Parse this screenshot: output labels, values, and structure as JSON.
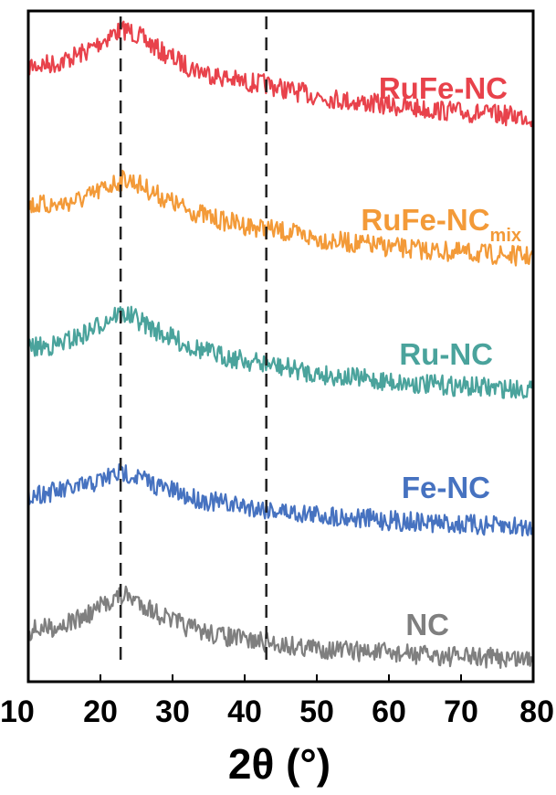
{
  "chart_data": {
    "type": "line",
    "xlabel": "2θ (°)",
    "xlim": [
      10,
      80
    ],
    "xticks": [
      10,
      20,
      30,
      40,
      50,
      60,
      70,
      80
    ],
    "y_axis_shown": false,
    "stacked_offset": true,
    "grid": false,
    "reference_lines": [
      {
        "x": 22.8,
        "style": "dashed",
        "color": "#222222"
      },
      {
        "x": 43.0,
        "style": "dashed",
        "color": "#222222"
      }
    ],
    "series": [
      {
        "name": "RuFe-NC",
        "color": "#e8424b",
        "x": [
          10,
          14,
          18,
          20,
          22,
          23.5,
          25,
          28,
          32,
          36,
          40,
          43,
          46,
          50,
          55,
          60,
          65,
          70,
          75,
          80
        ],
        "y": [
          0.55,
          0.58,
          0.7,
          0.8,
          0.9,
          0.93,
          0.88,
          0.72,
          0.55,
          0.45,
          0.38,
          0.36,
          0.3,
          0.24,
          0.18,
          0.14,
          0.1,
          0.07,
          0.04,
          0.02
        ]
      },
      {
        "name": "RuFe-NCmix",
        "name_main": "RuFe-NC",
        "name_sub": "mix",
        "color": "#f39a38",
        "x": [
          10,
          14,
          18,
          20,
          22,
          23.5,
          25,
          28,
          32,
          36,
          40,
          43,
          46,
          50,
          55,
          60,
          65,
          70,
          75,
          80
        ],
        "y": [
          0.55,
          0.55,
          0.62,
          0.7,
          0.78,
          0.82,
          0.78,
          0.65,
          0.5,
          0.4,
          0.34,
          0.3,
          0.26,
          0.2,
          0.15,
          0.11,
          0.08,
          0.05,
          0.03,
          0.01
        ]
      },
      {
        "name": "Ru-NC",
        "color": "#4aa39c",
        "x": [
          10,
          14,
          18,
          20,
          22,
          23.5,
          25,
          28,
          32,
          36,
          40,
          43,
          46,
          50,
          55,
          60,
          65,
          70,
          75,
          80
        ],
        "y": [
          0.45,
          0.48,
          0.6,
          0.7,
          0.8,
          0.8,
          0.75,
          0.62,
          0.48,
          0.38,
          0.32,
          0.28,
          0.24,
          0.18,
          0.14,
          0.1,
          0.07,
          0.05,
          0.03,
          0.02
        ]
      },
      {
        "name": "Fe-NC",
        "color": "#4672c0",
        "x": [
          10,
          14,
          18,
          20,
          22,
          23.5,
          25,
          28,
          32,
          36,
          40,
          43,
          46,
          50,
          55,
          60,
          65,
          70,
          75,
          80
        ],
        "y": [
          0.35,
          0.38,
          0.44,
          0.5,
          0.56,
          0.58,
          0.54,
          0.44,
          0.33,
          0.27,
          0.23,
          0.2,
          0.17,
          0.14,
          0.11,
          0.08,
          0.06,
          0.04,
          0.02,
          0.01
        ]
      },
      {
        "name": "NC",
        "color": "#7f7f7f",
        "x": [
          10,
          14,
          18,
          20,
          22,
          23.5,
          25,
          28,
          32,
          36,
          40,
          43,
          46,
          50,
          55,
          60,
          65,
          70,
          75,
          80
        ],
        "y": [
          0.3,
          0.35,
          0.45,
          0.55,
          0.65,
          0.67,
          0.62,
          0.48,
          0.34,
          0.26,
          0.21,
          0.18,
          0.15,
          0.12,
          0.09,
          0.07,
          0.05,
          0.03,
          0.02,
          0.01
        ]
      }
    ]
  }
}
